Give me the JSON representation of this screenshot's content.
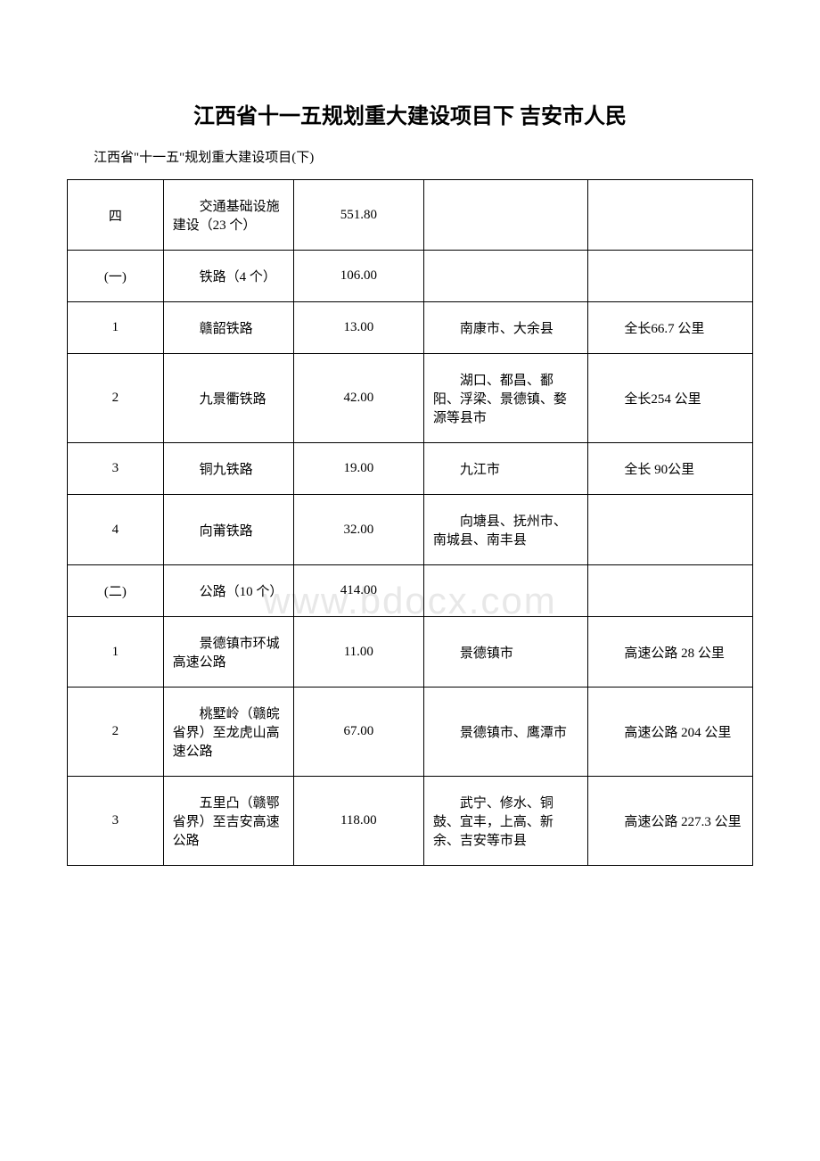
{
  "document": {
    "title": "江西省十一五规划重大建设项目下 吉安市人民",
    "subtitle": "江西省\"十一五\"规划重大建设项目(下)",
    "watermark": "www.bdocx.com"
  },
  "table": {
    "columns": [
      "col1",
      "col2",
      "col3",
      "col4",
      "col5"
    ],
    "col_widths": [
      "14%",
      "19%",
      "19%",
      "24%",
      "24%"
    ],
    "border_color": "#000000",
    "font_size": 15,
    "rows": [
      {
        "c1": "四",
        "c2": "交通基础设施建设（23 个）",
        "c3": "551.80",
        "c4": "",
        "c5": ""
      },
      {
        "c1": "(一)",
        "c2": "铁路（4 个）",
        "c3": "106.00",
        "c4": "",
        "c5": ""
      },
      {
        "c1": "1",
        "c2": "赣韶铁路",
        "c3": "13.00",
        "c4": "南康市、大余县",
        "c5": "全长66.7 公里"
      },
      {
        "c1": "2",
        "c2": "九景衢铁路",
        "c3": "42.00",
        "c4": "湖口、都昌、鄱阳、浮梁、景德镇、婺源等县市",
        "c5": "全长254 公里"
      },
      {
        "c1": "3",
        "c2": "铜九铁路",
        "c3": "19.00",
        "c4": "九江市",
        "c5": "全长 90公里"
      },
      {
        "c1": "4",
        "c2": "向莆铁路",
        "c3": "32.00",
        "c4": "向塘县、抚州市、南城县、南丰县",
        "c5": ""
      },
      {
        "c1": "(二)",
        "c2": "公路（10 个）",
        "c3": "414.00",
        "c4": "",
        "c5": ""
      },
      {
        "c1": "1",
        "c2": "景德镇市环城高速公路",
        "c3": "11.00",
        "c4": "景德镇市",
        "c5": "高速公路 28 公里"
      },
      {
        "c1": "2",
        "c2": "桃墅岭（赣皖省界）至龙虎山高速公路",
        "c3": "67.00",
        "c4": "景德镇市、鹰潭市",
        "c5": "高速公路 204 公里"
      },
      {
        "c1": "3",
        "c2": "五里凸（赣鄂省界）至吉安高速公路",
        "c3": "118.00",
        "c4": "武宁、修水、铜鼓、宜丰，上高、新余、吉安等市县",
        "c5": "高速公路 227.3 公里"
      }
    ]
  }
}
